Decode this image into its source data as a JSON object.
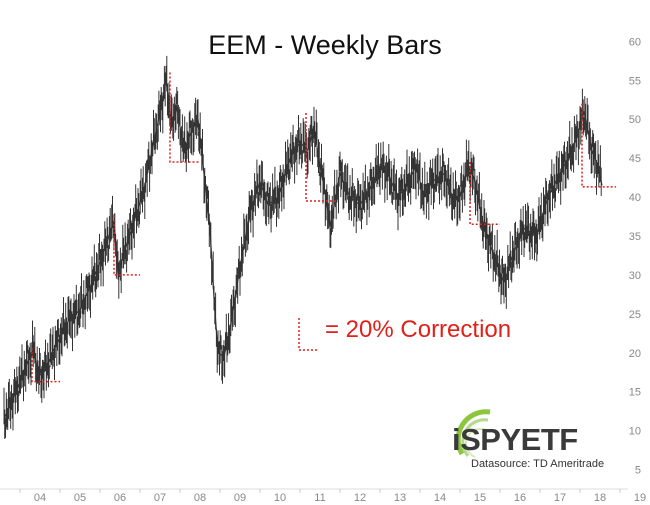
{
  "chart_data": {
    "type": "line",
    "title": "EEM - Weekly Bars",
    "xlabel": "",
    "ylabel": "",
    "x_ticks": [
      "04",
      "05",
      "06",
      "07",
      "08",
      "09",
      "10",
      "11",
      "12",
      "13",
      "14",
      "15",
      "16",
      "17",
      "18",
      "19"
    ],
    "y_ticks": [
      5,
      10,
      15,
      20,
      25,
      30,
      35,
      40,
      45,
      50,
      55,
      60
    ],
    "xlim": [
      2003.55,
      2019.0
    ],
    "ylim": [
      2.5,
      63
    ],
    "grid": false,
    "y_axis_side": "right",
    "series": [
      {
        "x": [
          2003.6,
          2003.9,
          2004.2,
          2004.35,
          2004.45,
          2004.6,
          2004.9,
          2005.2,
          2005.5,
          2005.8,
          2006.1,
          2006.35,
          2006.45,
          2006.55,
          2006.8,
          2007.1,
          2007.3,
          2007.55,
          2007.65,
          2007.8,
          2007.9,
          2008.1,
          2008.25,
          2008.45,
          2008.6,
          2008.75,
          2008.85,
          2008.95,
          2009.1,
          2009.25,
          2009.5,
          2009.75,
          2010.0,
          2010.2,
          2010.45,
          2010.75,
          2011.0,
          2011.2,
          2011.35,
          2011.5,
          2011.65,
          2011.75,
          2012.0,
          2012.25,
          2012.5,
          2012.75,
          2013.0,
          2013.2,
          2013.45,
          2013.6,
          2013.9,
          2014.1,
          2014.3,
          2014.6,
          2014.85,
          2015.0,
          2015.2,
          2015.35,
          2015.6,
          2015.75,
          2015.95,
          2016.1,
          2016.35,
          2016.6,
          2016.9,
          2017.2,
          2017.5,
          2017.8,
          2018.0,
          2018.1,
          2018.3,
          2018.45,
          2018.55
        ],
        "values": [
          11.5,
          15.0,
          19.0,
          20.5,
          17.0,
          17.5,
          21.0,
          24.0,
          25.5,
          29.0,
          33.0,
          37.0,
          30.0,
          32.0,
          36.0,
          41.0,
          46.0,
          52.0,
          55.0,
          49.0,
          52.0,
          46.0,
          48.0,
          50.0,
          43.0,
          36.0,
          27.0,
          20.0,
          19.5,
          23.0,
          31.0,
          38.0,
          42.0,
          39.0,
          40.0,
          45.0,
          47.0,
          46.0,
          49.0,
          44.0,
          40.0,
          36.0,
          43.0,
          40.0,
          39.0,
          41.0,
          44.0,
          43.0,
          40.0,
          41.0,
          44.0,
          40.0,
          42.0,
          43.0,
          39.5,
          40.0,
          44.0,
          42.5,
          36.0,
          34.0,
          31.0,
          29.0,
          33.0,
          36.0,
          35.0,
          40.0,
          43.0,
          46.0,
          49.0,
          51.0,
          46.0,
          44.0,
          41.5
        ]
      }
    ],
    "corrections": [
      {
        "peak_x": 2004.3,
        "peak": 20.6,
        "trough_x": 2004.45,
        "trough": 16.3,
        "end_x": 2005.0
      },
      {
        "peak_x": 2006.35,
        "peak": 37.6,
        "trough_x": 2006.4,
        "trough": 30.0,
        "end_x": 2007.0
      },
      {
        "peak_x": 2007.75,
        "peak": 56.0,
        "trough_x": 2007.85,
        "trough": 44.5,
        "end_x": 2008.5
      },
      {
        "peak_x": 2011.15,
        "peak": 50.8,
        "trough_x": 2011.2,
        "trough": 39.5,
        "end_x": 2011.95
      },
      {
        "peak_x": 2015.25,
        "peak": 44.5,
        "trough_x": 2015.3,
        "trough": 36.5,
        "end_x": 2016.0
      },
      {
        "peak_x": 2018.05,
        "peak": 52.0,
        "trough_x": 2018.1,
        "trough": 41.3,
        "end_x": 2018.9
      }
    ],
    "colors": {
      "price": "#333333",
      "correction": "#e0211b",
      "axis_text": "#888888"
    }
  },
  "legend": {
    "label": "= 20% Correction"
  },
  "logo": {
    "word": "iSPYETF",
    "source": "Datasource: TD Ameritrade"
  }
}
